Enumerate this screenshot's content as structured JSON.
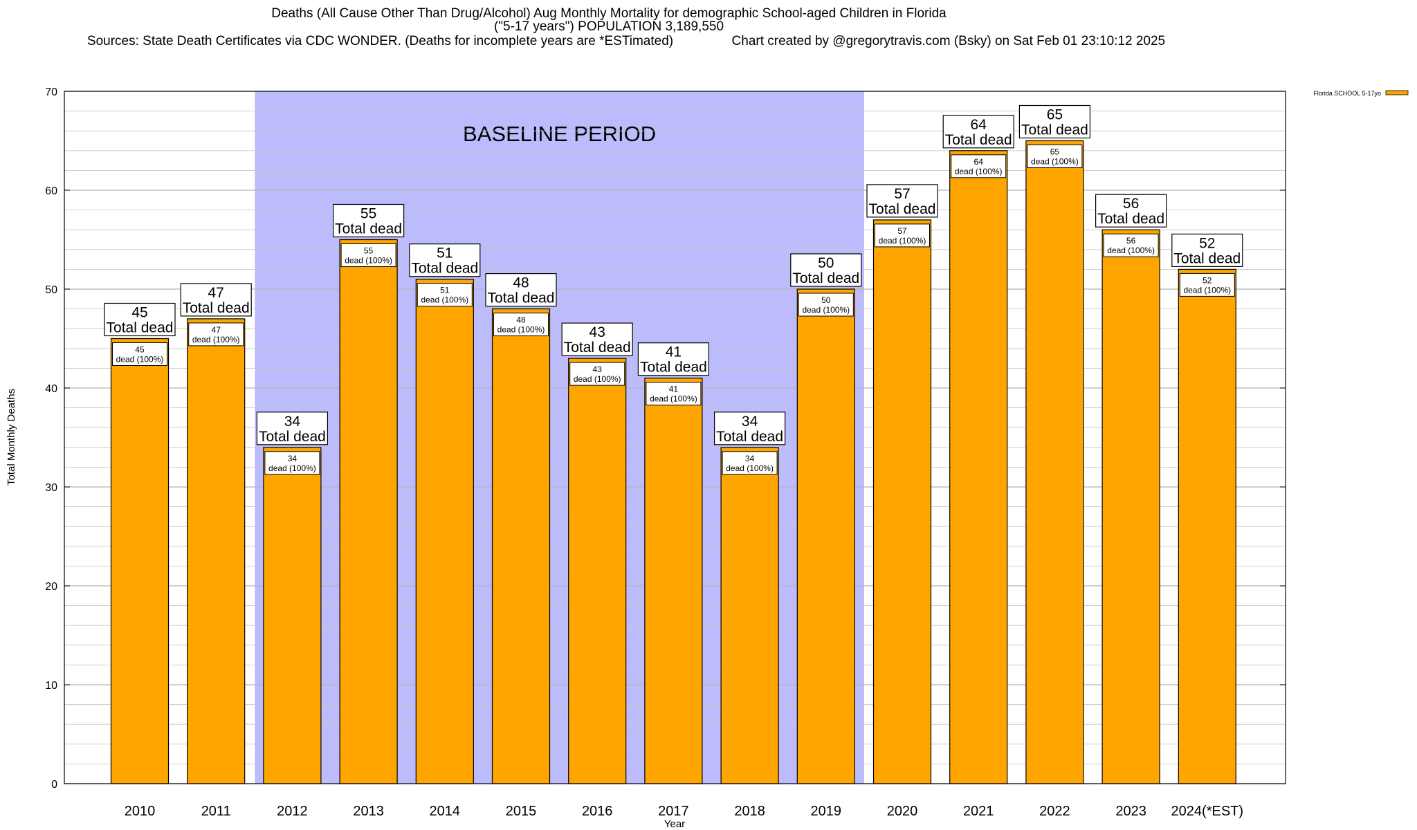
{
  "chart_data": {
    "type": "bar",
    "title_lines": [
      "Deaths (All Cause Other Than Drug/Alcohol) Aug Monthly Mortality for demographic School-aged Children in Florida",
      "(\"5-17 years\") POPULATION 3,189,550",
      "Sources: State Death Certificates via CDC WONDER. (Deaths for incomplete years are *ESTimated)                Chart created by @gregorytravis.com (Bsky) on Sat Feb 01 23:10:12 2025"
    ],
    "xlabel": "Year",
    "ylabel": "Total Monthly Deaths",
    "ylim": [
      0,
      70
    ],
    "y_ticks": [
      0,
      10,
      20,
      30,
      40,
      50,
      60,
      70
    ],
    "categories": [
      "2010",
      "2011",
      "2012",
      "2013",
      "2014",
      "2015",
      "2016",
      "2017",
      "2018",
      "2019",
      "2020",
      "2021",
      "2022",
      "2023",
      "2024(*EST)"
    ],
    "series": [
      {
        "name": "Florida SCHOOL 5-17yo",
        "values": [
          45,
          47,
          34,
          55,
          51,
          48,
          43,
          41,
          34,
          50,
          57,
          64,
          65,
          56,
          52
        ]
      }
    ],
    "top_label_suffix": "Total dead",
    "inner_label_suffix": "dead (100%)",
    "baseline_period": {
      "label": "BASELINE PERIOD",
      "start_category": "2012",
      "end_category": "2019"
    },
    "legend": {
      "position": "top-right",
      "entries": [
        "Florida SCHOOL 5-17yo"
      ]
    },
    "colors": {
      "bar": "#FFA500",
      "bar_stroke": "#000000",
      "baseline": "#BCBCFC",
      "grid": "#c8c8c8"
    }
  }
}
